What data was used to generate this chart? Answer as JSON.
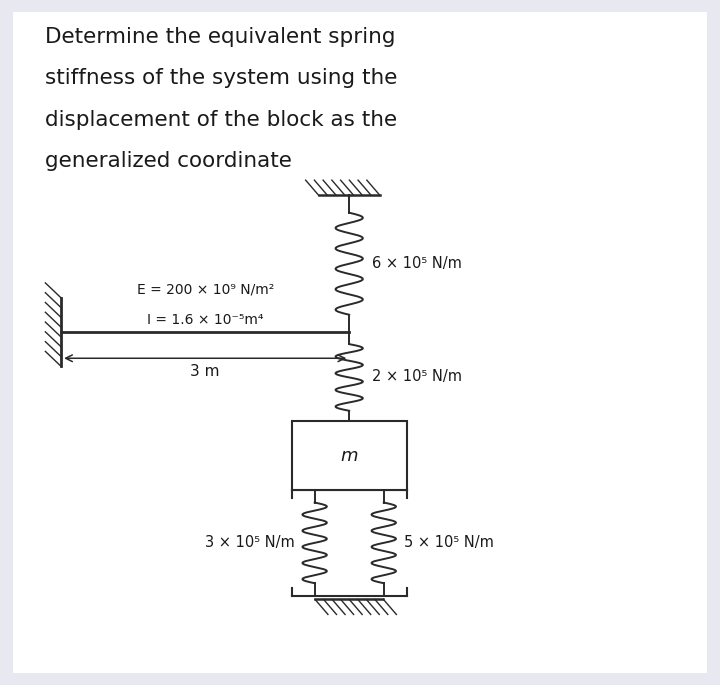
{
  "title_lines": [
    "Determine the equivalent spring",
    "stiffness of the system using the",
    "displacement of the block as the",
    "generalized coordinate"
  ],
  "title_fontsize": 15.5,
  "bg_color": "#e8e8f0",
  "panel_color": "#ffffff",
  "text_color": "#1a1a1a",
  "E_label": "E = 200 × 10⁹ N/m²",
  "I_label": "I = 1.6 × 10⁻⁵m⁴",
  "dim_label": "3 m",
  "k1_label": "6 × 10⁵ N/m",
  "k2_label": "2 × 10⁵ N/m",
  "k3_label": "3 × 10⁵ N/m",
  "k4_label": "5 × 10⁵ N/m",
  "mass_label": "m"
}
